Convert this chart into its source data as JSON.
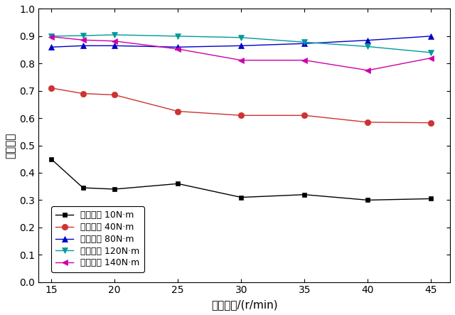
{
  "x": [
    15,
    17.5,
    20,
    25,
    30,
    35,
    40,
    45
  ],
  "series_order": [
    "10N",
    "40N",
    "80N",
    "120N",
    "140N"
  ],
  "series": {
    "10N": {
      "label": "输出转矩 10N·m",
      "color": "#000000",
      "marker": "s",
      "markersize": 5,
      "values": [
        0.45,
        0.345,
        0.34,
        0.36,
        0.31,
        0.32,
        0.3,
        0.305
      ]
    },
    "40N": {
      "label": "输出转矩 40N·m",
      "color": "#cc3333",
      "marker": "o",
      "markersize": 6,
      "values": [
        0.71,
        0.69,
        0.685,
        0.625,
        0.61,
        0.61,
        0.585,
        0.583
      ]
    },
    "80N": {
      "label": "输出转矩 80N·m",
      "color": "#0000cc",
      "marker": "^",
      "markersize": 6,
      "values": [
        0.86,
        0.865,
        0.865,
        0.86,
        0.865,
        0.873,
        0.885,
        0.9
      ]
    },
    "120N": {
      "label": "输出转矩 120N·m",
      "color": "#009999",
      "marker": "v",
      "markersize": 6,
      "values": [
        0.9,
        0.902,
        0.905,
        0.9,
        0.895,
        0.878,
        0.862,
        0.84
      ]
    },
    "140N": {
      "label": "输出转矩 140N·m",
      "color": "#cc00aa",
      "marker": "<",
      "markersize": 6,
      "values": [
        0.898,
        0.886,
        0.882,
        0.853,
        0.812,
        0.812,
        0.775,
        0.82
      ]
    }
  },
  "xlabel": "输出转速/(r/min)",
  "ylabel": "功率因数",
  "xlim": [
    14,
    46.5
  ],
  "ylim": [
    0.0,
    1.0
  ],
  "xticks": [
    15,
    20,
    25,
    30,
    35,
    40,
    45
  ],
  "yticks": [
    0.0,
    0.1,
    0.2,
    0.3,
    0.4,
    0.5,
    0.6,
    0.7,
    0.8,
    0.9,
    1.0
  ],
  "figsize": [
    6.4,
    4.43
  ],
  "dpi": 100
}
